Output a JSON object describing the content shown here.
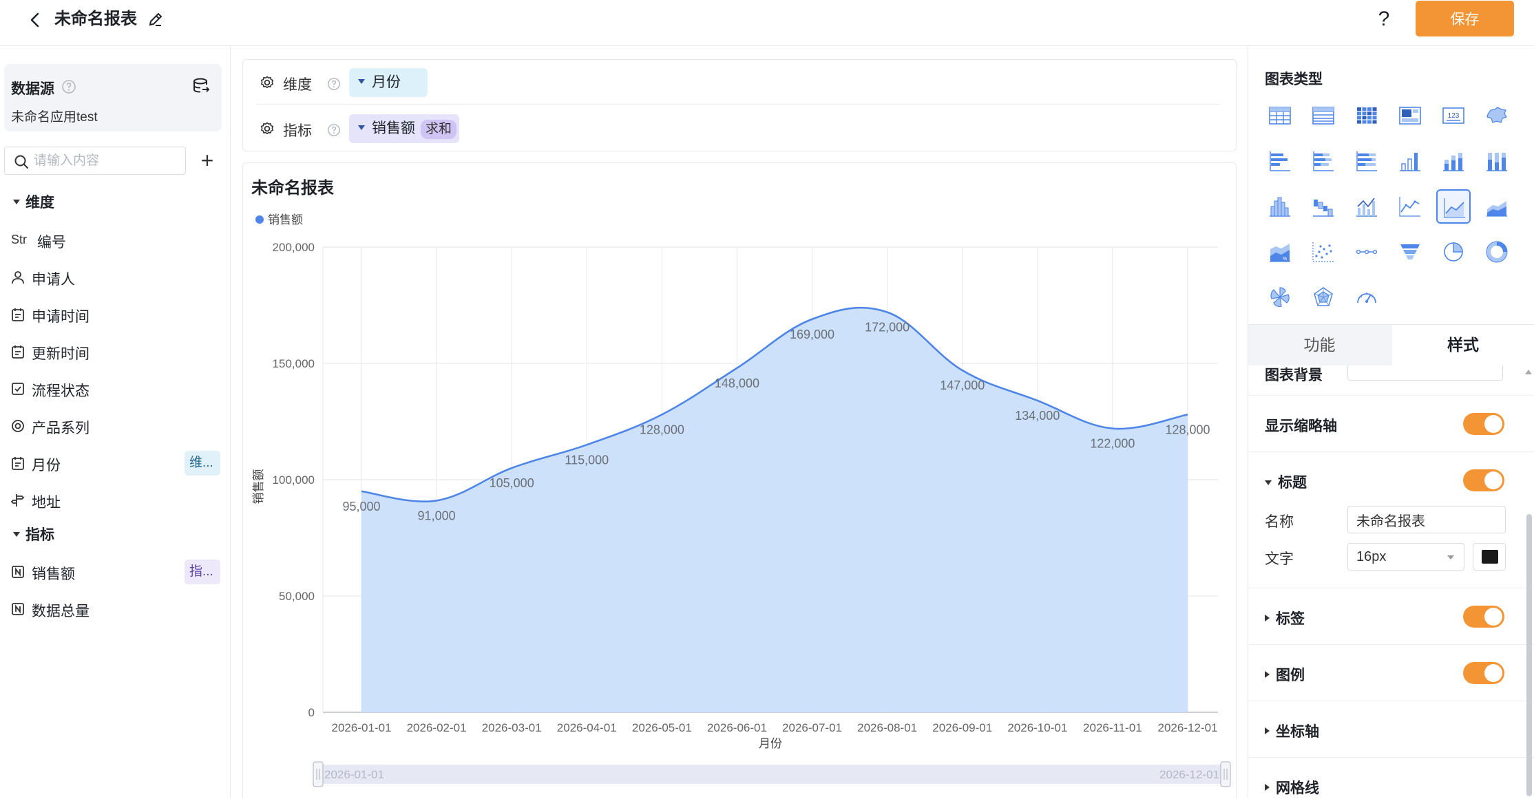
{
  "header": {
    "title": "未命名报表",
    "save_label": "保存",
    "help_label": "?"
  },
  "left": {
    "datasource_title": "数据源",
    "datasource_name": "未命名应用test",
    "search_placeholder": "请输入内容",
    "add_label": "+",
    "dimension_group": "维度",
    "metric_group": "指标",
    "dimensions": [
      {
        "label": "编号",
        "icon": "string-type-icon",
        "type_text": "Str"
      },
      {
        "label": "申请人",
        "icon": "user-icon"
      },
      {
        "label": "申请时间",
        "icon": "calendar-icon"
      },
      {
        "label": "更新时间",
        "icon": "calendar-icon"
      },
      {
        "label": "流程状态",
        "icon": "checkbox-icon"
      },
      {
        "label": "产品系列",
        "icon": "radio-icon"
      },
      {
        "label": "月份",
        "icon": "calendar-icon",
        "tag": "维..."
      },
      {
        "label": "地址",
        "icon": "signpost-icon"
      }
    ],
    "metrics": [
      {
        "label": "销售额",
        "icon": "number-icon",
        "tag": "指..."
      },
      {
        "label": "数据总量",
        "icon": "number-icon"
      }
    ]
  },
  "config": {
    "dimension_label": "维度",
    "metric_label": "指标",
    "dimension_pill": "月份",
    "metric_pill": "销售额",
    "metric_agg": "求和"
  },
  "chart_card": {
    "title": "未命名报表",
    "zoom_start_label": "2026-01-01",
    "zoom_end_label": "2026-12-01"
  },
  "chart_data": {
    "type": "area",
    "title": "未命名报表",
    "xlabel": "月份",
    "ylabel": "销售额",
    "ylim": [
      0,
      200000
    ],
    "yticks": [
      0,
      50000,
      100000,
      150000,
      200000
    ],
    "ytick_labels": [
      "0",
      "50,000",
      "100,000",
      "150,000",
      "200,000"
    ],
    "grid": true,
    "smooth": true,
    "legend": "top-left",
    "categories": [
      "2026-01-01",
      "2026-02-01",
      "2026-03-01",
      "2026-04-01",
      "2026-05-01",
      "2026-06-01",
      "2026-07-01",
      "2026-08-01",
      "2026-09-01",
      "2026-10-01",
      "2026-11-01",
      "2026-12-01"
    ],
    "series": [
      {
        "name": "销售额",
        "color": "#4d86e8",
        "fill": "#cadffb",
        "values": [
          95000,
          91000,
          105000,
          115000,
          128000,
          148000,
          169000,
          172000,
          147000,
          134000,
          122000,
          128000
        ],
        "value_labels": [
          "95,000",
          "91,000",
          "105,000",
          "115,000",
          "128,000",
          "148,000",
          "169,000",
          "172,000",
          "147,000",
          "134,000",
          "122,000",
          "128,000"
        ]
      }
    ]
  },
  "right": {
    "chart_types_title": "图表类型",
    "chart_types": [
      "table-icon",
      "detail-table-icon",
      "pivot-table-icon",
      "card-icon",
      "kpi-number-icon",
      "map-icon",
      "horizontal-bar-icon",
      "stacked-horizontal-bar-icon",
      "percent-horizontal-bar-icon",
      "column-icon",
      "stacked-column-icon",
      "percent-column-icon",
      "histogram-icon",
      "waterfall-icon",
      "combo-icon",
      "line-icon",
      "area-icon",
      "stacked-area-icon",
      "percent-area-icon",
      "scatter-icon",
      "dot-line-icon",
      "funnel-icon",
      "pie-icon",
      "donut-icon",
      "rose-icon",
      "radar-icon",
      "gauge-icon"
    ],
    "active_chart_type": "area-icon",
    "tab_function": "功能",
    "tab_style": "样式",
    "options": {
      "background_label": "图表背景",
      "zoom_axis_label": "显示缩略轴",
      "title_label": "标题",
      "name_label": "名称",
      "name_value": "未命名报表",
      "text_label": "文字",
      "font_size": "16px",
      "text_color": "#1a1a1a",
      "tag_label": "标签",
      "legend_label": "图例",
      "axis_label": "坐标轴",
      "gridline_label": "网格线"
    }
  }
}
